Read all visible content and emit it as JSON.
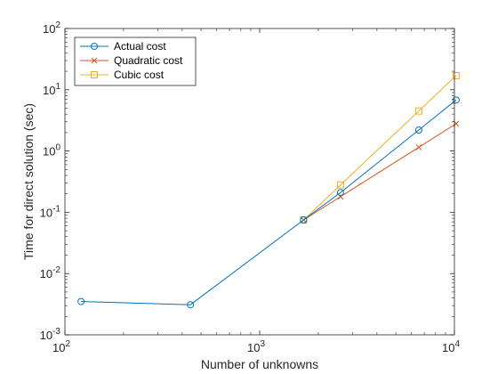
{
  "chart_data": {
    "type": "line",
    "xscale": "log",
    "yscale": "log",
    "xlim": [
      100,
      10000
    ],
    "ylim": [
      0.001,
      100
    ],
    "xlabel": "Number of unknowns",
    "ylabel": "Time for direct solution (sec)",
    "grid": false,
    "legend_position": "top-left",
    "x_ticks": [
      {
        "value": 100,
        "base": "10",
        "exp": "2"
      },
      {
        "value": 1000,
        "base": "10",
        "exp": "3"
      },
      {
        "value": 10000,
        "base": "10",
        "exp": "4"
      }
    ],
    "y_ticks": [
      {
        "value": 0.001,
        "base": "10",
        "exp": "-3"
      },
      {
        "value": 0.01,
        "base": "10",
        "exp": "-2"
      },
      {
        "value": 0.1,
        "base": "10",
        "exp": "-1"
      },
      {
        "value": 1,
        "base": "10",
        "exp": "0"
      },
      {
        "value": 10,
        "base": "10",
        "exp": "1"
      },
      {
        "value": 100,
        "base": "10",
        "exp": "2"
      }
    ],
    "series": [
      {
        "name": "Actual cost",
        "color": "#0072BD",
        "marker": "circle",
        "points": [
          [
            121,
            0.0035
          ],
          [
            441,
            0.0031
          ],
          [
            1681,
            0.075
          ],
          [
            2601,
            0.21
          ],
          [
            6561,
            2.2
          ],
          [
            10201,
            6.8
          ]
        ]
      },
      {
        "name": "Quadratic cost",
        "color": "#D95319",
        "marker": "x",
        "points": [
          [
            1681,
            0.075
          ],
          [
            2601,
            0.18
          ],
          [
            6561,
            1.15
          ],
          [
            10201,
            2.8
          ]
        ]
      },
      {
        "name": "Cubic cost",
        "color": "#EDB120",
        "marker": "square",
        "points": [
          [
            1681,
            0.075
          ],
          [
            2601,
            0.28
          ],
          [
            6561,
            4.5
          ],
          [
            10201,
            17
          ]
        ]
      }
    ]
  }
}
